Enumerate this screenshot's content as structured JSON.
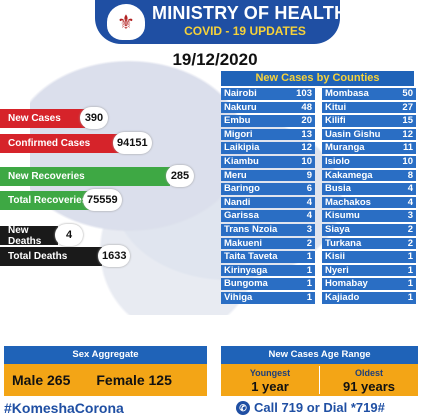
{
  "header": {
    "title": "MINISTRY OF HEALTH",
    "subtitle": "COVID - 19 UPDATES",
    "crest_icon": "coat-of-arms-icon"
  },
  "date": "19/12/2020",
  "stats": {
    "new_cases_label": "New Cases",
    "new_cases": "390",
    "confirmed_label": "Confirmed Cases",
    "confirmed": "94151",
    "new_recoveries_label": "New Recoveries",
    "new_recoveries": "285",
    "total_recoveries_label": "Total Recoveries",
    "total_recoveries": "75559",
    "new_deaths_label": "New Deaths",
    "new_deaths": "4",
    "total_deaths_label": "Total Deaths",
    "total_deaths": "1633"
  },
  "counties": {
    "title": "New Cases by Counties",
    "left": [
      {
        "name": "Nairobi",
        "value": "103"
      },
      {
        "name": "Nakuru",
        "value": "48"
      },
      {
        "name": "Embu",
        "value": "20"
      },
      {
        "name": "Migori",
        "value": "13"
      },
      {
        "name": "Laikipia",
        "value": "12"
      },
      {
        "name": "Kiambu",
        "value": "10"
      },
      {
        "name": "Meru",
        "value": "9"
      },
      {
        "name": "Baringo",
        "value": "6"
      },
      {
        "name": "Nandi",
        "value": "4"
      },
      {
        "name": "Garissa",
        "value": "4"
      },
      {
        "name": "Trans Nzoia",
        "value": "3"
      },
      {
        "name": "Makueni",
        "value": "2"
      },
      {
        "name": "Taita Taveta",
        "value": "1"
      },
      {
        "name": "Kirinyaga",
        "value": "1"
      },
      {
        "name": "Bungoma",
        "value": "1"
      },
      {
        "name": "Vihiga",
        "value": "1"
      }
    ],
    "right": [
      {
        "name": "Mombasa",
        "value": "50"
      },
      {
        "name": "Kitui",
        "value": "27"
      },
      {
        "name": "Kilifi",
        "value": "15"
      },
      {
        "name": "Uasin Gishu",
        "value": "12"
      },
      {
        "name": "Muranga",
        "value": "11"
      },
      {
        "name": "Isiolo",
        "value": "10"
      },
      {
        "name": "Kakamega",
        "value": "8"
      },
      {
        "name": "Busia",
        "value": "4"
      },
      {
        "name": "Machakos",
        "value": "4"
      },
      {
        "name": "Kisumu",
        "value": "3"
      },
      {
        "name": "Siaya",
        "value": "2"
      },
      {
        "name": "Turkana",
        "value": "2"
      },
      {
        "name": "Kisii",
        "value": "1"
      },
      {
        "name": "Nyeri",
        "value": "1"
      },
      {
        "name": "Homabay",
        "value": "1"
      },
      {
        "name": "Kajiado",
        "value": "1"
      }
    ]
  },
  "sex": {
    "title": "Sex Aggregate",
    "male": "Male 265",
    "female": "Female  125"
  },
  "age": {
    "title": "New Cases Age Range",
    "youngest_label": "Youngest",
    "youngest": "1 year",
    "oldest_label": "Oldest",
    "oldest": "91 years"
  },
  "footer": {
    "hashtag": "#KomeshaCorona",
    "call": "Call  719 or Dial *719#",
    "phone_icon": "phone-icon"
  },
  "colors": {
    "blue": "#1f4fa3",
    "red": "#d6232a",
    "green": "#3ea844",
    "orange": "#f3a516",
    "yellow": "#f6d23a"
  }
}
